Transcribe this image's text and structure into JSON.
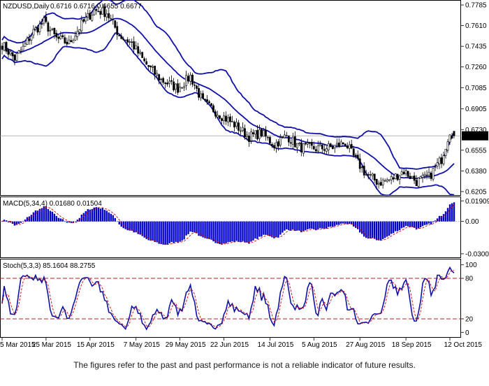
{
  "chart_data": [
    {
      "panel": "price",
      "type": "candlestick",
      "title": "NZDUSD,Daily",
      "ohlc_header": "0.6716 0.6716 0.6655 0.6677",
      "current_price": "0.6677",
      "indicator": "Bollinger Bands",
      "y_ticks": [
        "0.7785",
        "0.7610",
        "0.7435",
        "0.7260",
        "0.7085",
        "0.6905",
        "0.6730",
        "0.6555",
        "0.6380",
        "0.6205"
      ],
      "ylim": [
        0.6175,
        0.7815
      ],
      "x_ticks": [
        "5 Mar 2015",
        "25 Mar 2015",
        "15 Apr 2015",
        "7 May 2015",
        "29 May 2015",
        "22 Jun 2015",
        "14 Jul 2015",
        "5 Aug 2015",
        "27 Aug 2015",
        "18 Sep 2015",
        "12 Oct 2015"
      ],
      "anchors": [
        [
          0,
          0.745
        ],
        [
          6,
          0.733
        ],
        [
          10,
          0.742
        ],
        [
          15,
          0.756
        ],
        [
          20,
          0.764
        ],
        [
          26,
          0.75
        ],
        [
          32,
          0.746
        ],
        [
          38,
          0.762
        ],
        [
          44,
          0.774
        ],
        [
          50,
          0.772
        ],
        [
          56,
          0.753
        ],
        [
          62,
          0.746
        ],
        [
          68,
          0.73
        ],
        [
          76,
          0.715
        ],
        [
          84,
          0.708
        ],
        [
          90,
          0.718
        ],
        [
          96,
          0.696
        ],
        [
          104,
          0.686
        ],
        [
          112,
          0.676
        ],
        [
          118,
          0.667
        ],
        [
          124,
          0.67
        ],
        [
          130,
          0.66
        ],
        [
          136,
          0.668
        ],
        [
          142,
          0.658
        ],
        [
          150,
          0.657
        ],
        [
          158,
          0.658
        ],
        [
          164,
          0.662
        ],
        [
          168,
          0.65
        ],
        [
          174,
          0.635
        ],
        [
          180,
          0.628
        ],
        [
          186,
          0.631
        ],
        [
          192,
          0.638
        ],
        [
          198,
          0.629
        ],
        [
          204,
          0.633
        ],
        [
          210,
          0.648
        ],
        [
          214,
          0.672
        ],
        [
          216,
          0.6677
        ]
      ]
    },
    {
      "panel": "macd",
      "type": "histogram",
      "title": "MACD(5,34,4) 0.01680 0.01504",
      "y_ticks": [
        "0.01909",
        "0.00",
        "-0.03004"
      ],
      "ylim": [
        -0.034,
        0.0225
      ]
    },
    {
      "panel": "stochastic",
      "type": "line",
      "title": "Stoch(5,3,3) 85.1604 88.2755",
      "y_ticks": [
        "100",
        "80",
        "20",
        "0"
      ],
      "ylim": [
        -8,
        108
      ],
      "levels": [
        20,
        80
      ]
    }
  ],
  "colors": {
    "candle": "#000000",
    "band": "#1010a8",
    "hist": "#0000cd",
    "signal": "#cc0000",
    "level": "#b22222",
    "frame": "#000000",
    "grid_price": "#888888"
  },
  "disclaimer": "The figures refer to the past and past performance is not a reliable indicator of future results."
}
